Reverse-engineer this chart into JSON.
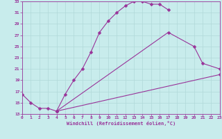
{
  "xlabel": "Windchill (Refroidissement éolien,°C)",
  "xlim": [
    0,
    23
  ],
  "ylim": [
    13,
    33
  ],
  "xticks": [
    0,
    1,
    2,
    3,
    4,
    5,
    6,
    7,
    8,
    9,
    10,
    11,
    12,
    13,
    14,
    15,
    16,
    17,
    18,
    19,
    20,
    21,
    22,
    23
  ],
  "yticks": [
    13,
    15,
    17,
    19,
    21,
    23,
    25,
    27,
    29,
    31,
    33
  ],
  "bg_color": "#c8ecec",
  "grid_color": "#b0d8d8",
  "line_color": "#993399",
  "curve1_x": [
    0,
    1,
    2,
    3,
    4,
    5,
    6,
    7,
    8,
    9,
    10,
    11,
    12,
    13,
    14,
    15,
    16,
    17
  ],
  "curve1_y": [
    16.5,
    15.0,
    14.0,
    14.0,
    13.5,
    16.5,
    19.0,
    21.0,
    24.0,
    27.5,
    29.5,
    31.0,
    32.2,
    33.0,
    33.0,
    32.5,
    32.5,
    31.5
  ],
  "curve2_x": [
    4,
    17,
    20,
    21,
    23
  ],
  "curve2_y": [
    13.5,
    27.5,
    25.0,
    22.0,
    21.0
  ],
  "curve3_x": [
    4,
    23
  ],
  "curve3_y": [
    13.5,
    20.0
  ],
  "markersize": 2.5,
  "linewidth": 0.8
}
